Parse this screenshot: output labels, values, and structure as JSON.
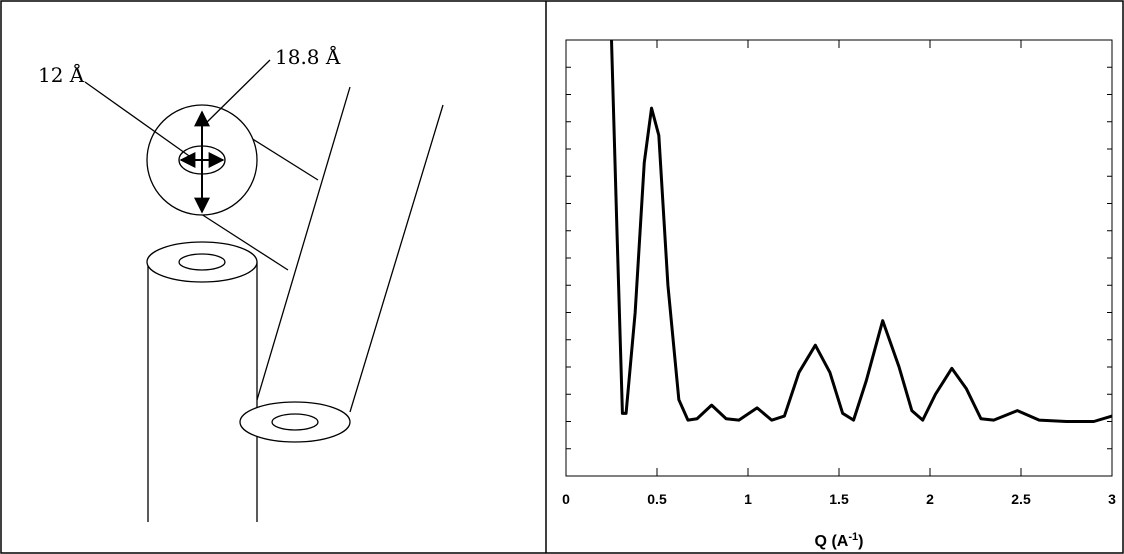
{
  "diagram": {
    "labels": [
      "12 Å",
      "18.8 Å"
    ]
  },
  "chart_data": {
    "type": "line",
    "x_label": {
      "text": "Q (A",
      "sup": "-1",
      "tail": ")"
    },
    "x": [
      0.25,
      0.28,
      0.31,
      0.33,
      0.38,
      0.43,
      0.47,
      0.51,
      0.56,
      0.62,
      0.67,
      0.72,
      0.8,
      0.88,
      0.95,
      1.05,
      1.13,
      1.2,
      1.28,
      1.37,
      1.45,
      1.52,
      1.58,
      1.65,
      1.74,
      1.83,
      1.9,
      1.96,
      2.03,
      2.12,
      2.2,
      2.28,
      2.35,
      2.48,
      2.6,
      2.75,
      2.9,
      3.0
    ],
    "series": [
      {
        "color": "#000000",
        "values": [
          16,
          9,
          2.3,
          2.3,
          6,
          11.5,
          13.5,
          12.5,
          7,
          2.8,
          2.05,
          2.1,
          2.6,
          2.1,
          2.05,
          2.5,
          2.05,
          2.2,
          3.8,
          4.8,
          3.8,
          2.3,
          2.05,
          3.5,
          5.7,
          4,
          2.4,
          2.05,
          3,
          3.95,
          3.2,
          2.1,
          2.05,
          2.4,
          2.05,
          2.0,
          2.0,
          2.2
        ]
      }
    ],
    "xlim": [
      0,
      3
    ],
    "xticks": [
      0,
      0.5,
      1,
      1.5,
      2,
      2.5,
      3
    ],
    "ylim": [
      0,
      16
    ],
    "yticks": [
      0,
      1,
      2,
      3,
      4,
      5,
      6,
      7,
      8,
      9,
      10,
      11,
      12,
      13,
      14,
      15,
      16
    ]
  }
}
